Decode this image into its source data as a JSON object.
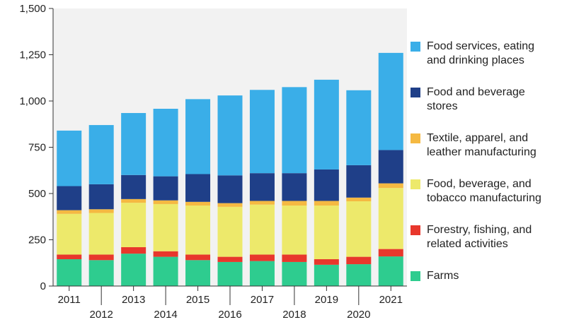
{
  "chart_data": {
    "type": "bar",
    "stacked": true,
    "categories": [
      "2011",
      "2012",
      "2013",
      "2014",
      "2015",
      "2016",
      "2017",
      "2018",
      "2019",
      "2020",
      "2021"
    ],
    "series": [
      {
        "name": "Farms",
        "color": "#2ecc8f",
        "values": [
          145,
          140,
          175,
          158,
          140,
          130,
          135,
          130,
          115,
          118,
          160
        ]
      },
      {
        "name": "Forestry, fishing, and related activities",
        "color": "#e8372c",
        "values": [
          25,
          30,
          35,
          30,
          30,
          28,
          35,
          40,
          30,
          40,
          40
        ]
      },
      {
        "name": "Food, beverage, and tobacco manufacturing",
        "color": "#ede96b",
        "values": [
          220,
          225,
          240,
          255,
          265,
          270,
          270,
          265,
          290,
          300,
          330
        ]
      },
      {
        "name": "Textile, apparel, and leather manufacturing",
        "color": "#f5b942",
        "values": [
          20,
          20,
          20,
          20,
          20,
          20,
          20,
          25,
          25,
          20,
          25
        ]
      },
      {
        "name": "Food and beverage stores",
        "color": "#1f3f88",
        "values": [
          130,
          135,
          130,
          130,
          150,
          150,
          150,
          150,
          170,
          175,
          180
        ]
      },
      {
        "name": "Food services, eating and drinking places",
        "color": "#3aaee8",
        "values": [
          300,
          320,
          335,
          365,
          405,
          432,
          450,
          465,
          485,
          405,
          525
        ]
      }
    ],
    "ylim": [
      0,
      1500
    ],
    "yticks": [
      "0",
      "250",
      "500",
      "750",
      "1,000",
      "1,250",
      "1,500"
    ],
    "legend_placement": "right",
    "grid": false,
    "plot_background": "#f2f2f2"
  },
  "legend_lines": [
    [
      "Food services, eating",
      "and drinking places"
    ],
    [
      "Food and beverage",
      "stores"
    ],
    [
      "Textile, apparel, and",
      "leather manufacturing"
    ],
    [
      "Food, beverage, and",
      "tobacco manufacturing"
    ],
    [
      "Forestry, fishing, and",
      "related activities"
    ],
    [
      "Farms"
    ]
  ]
}
